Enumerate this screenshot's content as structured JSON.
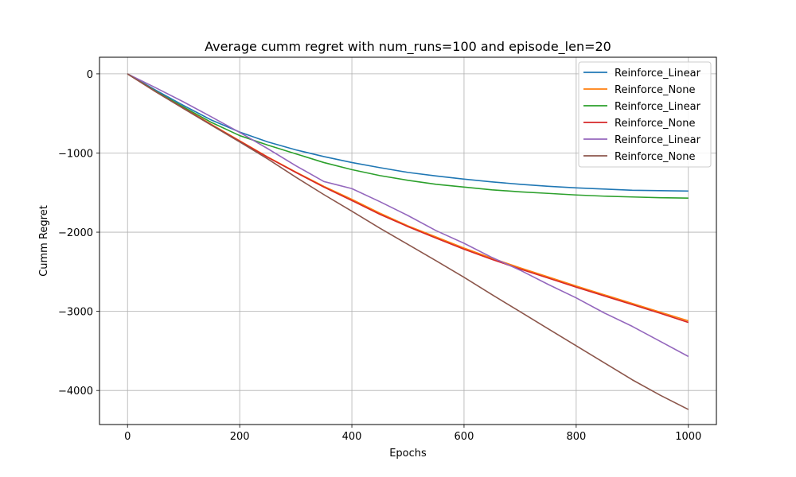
{
  "chart_data": {
    "type": "line",
    "title": "Average cumm regret with num_runs=100 and episode_len=20",
    "xlabel": "Epochs",
    "ylabel": "Cumm Regret",
    "xlim": [
      -50,
      1050
    ],
    "ylim": [
      -4430,
      210
    ],
    "xticks": [
      0,
      200,
      400,
      600,
      800,
      1000
    ],
    "xtick_labels": [
      "0",
      "200",
      "400",
      "600",
      "800",
      "1000"
    ],
    "yticks": [
      0,
      -1000,
      -2000,
      -3000,
      -4000
    ],
    "ytick_labels": [
      "0",
      "−1000",
      "−2000",
      "−3000",
      "−4000"
    ],
    "grid": true,
    "legend_position": "top-right",
    "x": [
      0,
      50,
      100,
      150,
      200,
      250,
      300,
      350,
      400,
      450,
      500,
      550,
      600,
      650,
      700,
      750,
      800,
      850,
      900,
      950,
      1000
    ],
    "series": [
      {
        "name": "Reinforce_Linear",
        "color": "#1f77b4",
        "values": [
          0,
          -205,
          -400,
          -585,
          -735,
          -860,
          -960,
          -1045,
          -1120,
          -1185,
          -1245,
          -1290,
          -1330,
          -1365,
          -1395,
          -1420,
          -1440,
          -1455,
          -1470,
          -1475,
          -1480
        ]
      },
      {
        "name": "Reinforce_None",
        "color": "#ff7f0e",
        "values": [
          0,
          -220,
          -430,
          -640,
          -845,
          -1050,
          -1240,
          -1420,
          -1585,
          -1760,
          -1920,
          -2060,
          -2200,
          -2330,
          -2450,
          -2565,
          -2680,
          -2790,
          -2900,
          -3010,
          -3120
        ]
      },
      {
        "name": "Reinforce_Linear",
        "color": "#2ca02c",
        "values": [
          0,
          -220,
          -420,
          -615,
          -780,
          -900,
          -1010,
          -1120,
          -1210,
          -1285,
          -1345,
          -1395,
          -1430,
          -1465,
          -1490,
          -1510,
          -1530,
          -1545,
          -1555,
          -1565,
          -1570
        ]
      },
      {
        "name": "Reinforce_None",
        "color": "#d62728",
        "values": [
          0,
          -225,
          -435,
          -645,
          -850,
          -1055,
          -1245,
          -1430,
          -1600,
          -1775,
          -1930,
          -2075,
          -2215,
          -2345,
          -2465,
          -2580,
          -2695,
          -2805,
          -2915,
          -3025,
          -3140
        ]
      },
      {
        "name": "Reinforce_Linear",
        "color": "#9467bd",
        "values": [
          0,
          -175,
          -355,
          -545,
          -740,
          -945,
          -1160,
          -1360,
          -1450,
          -1615,
          -1790,
          -1980,
          -2140,
          -2320,
          -2480,
          -2660,
          -2830,
          -3020,
          -3190,
          -3380,
          -3570
        ]
      },
      {
        "name": "Reinforce_None",
        "color": "#8c564b",
        "values": [
          0,
          -225,
          -440,
          -650,
          -860,
          -1075,
          -1305,
          -1525,
          -1735,
          -1950,
          -2155,
          -2360,
          -2570,
          -2790,
          -3005,
          -3220,
          -3435,
          -3650,
          -3865,
          -4060,
          -4240
        ]
      }
    ]
  }
}
